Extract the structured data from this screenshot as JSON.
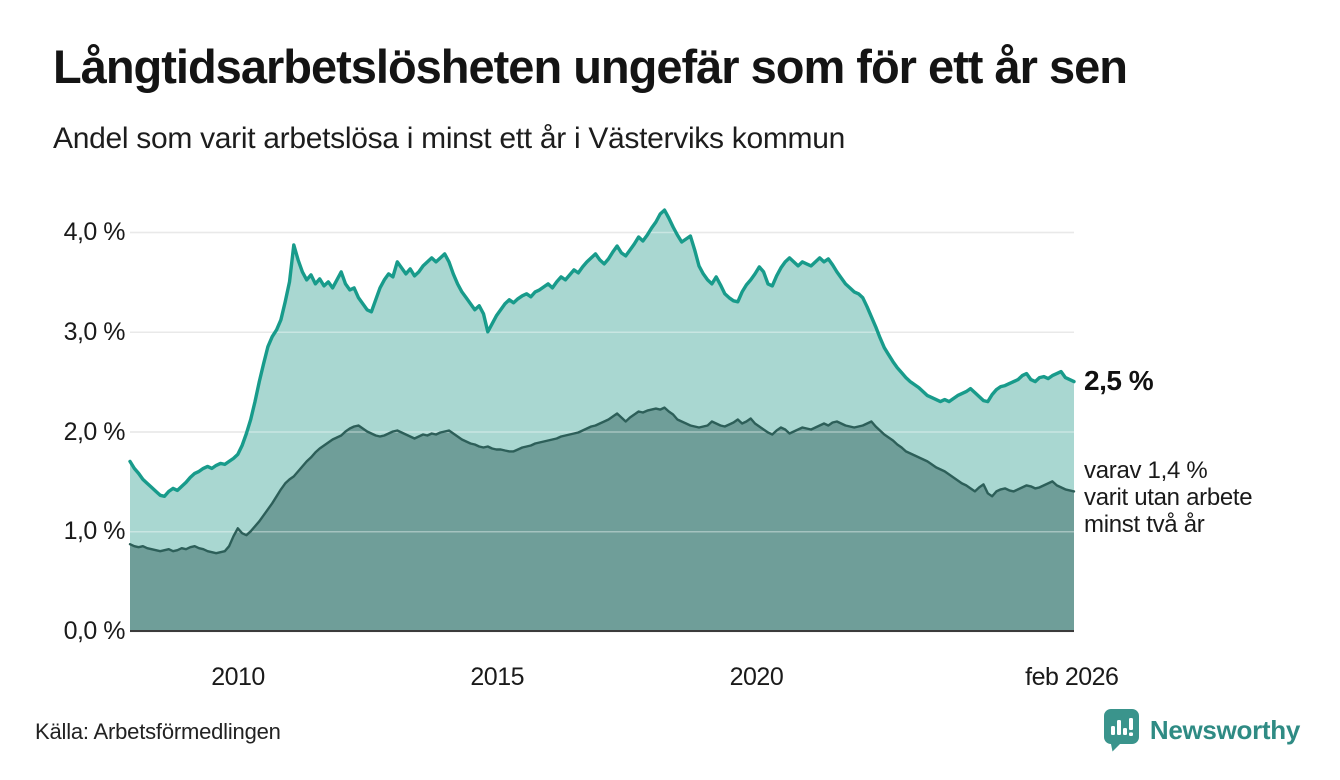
{
  "chart_data": {
    "type": "area",
    "title": "Långtidsarbetslösheten ungefär som för ett år sen",
    "subtitle": "Andel som varit arbetslösa i minst ett år i Västerviks kommun",
    "x_domain": [
      2007.9167,
      2026.125
    ],
    "x_start": "2007-11",
    "x_end": "2026-02",
    "x_step_months": 1,
    "x_axis_tick_years": [
      2010,
      2015,
      2020,
      2026.083
    ],
    "x_axis_tick_labels": [
      "2010",
      "2015",
      "2020",
      "feb 2026"
    ],
    "y_axis_ticks": [
      {
        "label": "0,0 %",
        "value": 0.0
      },
      {
        "label": "1,0 %",
        "value": 1.0
      },
      {
        "label": "2,0 %",
        "value": 2.0
      },
      {
        "label": "3,0 %",
        "value": 3.0
      },
      {
        "label": "4,0 %",
        "value": 4.0
      }
    ],
    "ylim": [
      0,
      4.35
    ],
    "grid": true,
    "legend_position": "none",
    "grid_color": "#dcdcdc",
    "baseline_color": "#3b3b3b",
    "series": [
      {
        "name": "Andel arbetslösa minst ett år",
        "line_color": "#189b8b",
        "fill_color": "#a9d7d1",
        "values": [
          1.7,
          1.63,
          1.58,
          1.52,
          1.48,
          1.44,
          1.4,
          1.36,
          1.35,
          1.4,
          1.43,
          1.41,
          1.45,
          1.49,
          1.54,
          1.58,
          1.6,
          1.63,
          1.65,
          1.63,
          1.66,
          1.68,
          1.67,
          1.7,
          1.73,
          1.77,
          1.86,
          1.98,
          2.12,
          2.3,
          2.5,
          2.68,
          2.85,
          2.95,
          3.02,
          3.12,
          3.3,
          3.5,
          3.87,
          3.72,
          3.6,
          3.52,
          3.57,
          3.48,
          3.53,
          3.46,
          3.5,
          3.44,
          3.52,
          3.6,
          3.48,
          3.42,
          3.44,
          3.34,
          3.28,
          3.22,
          3.2,
          3.32,
          3.44,
          3.52,
          3.58,
          3.55,
          3.7,
          3.64,
          3.58,
          3.63,
          3.56,
          3.6,
          3.66,
          3.7,
          3.74,
          3.7,
          3.74,
          3.78,
          3.7,
          3.58,
          3.48,
          3.4,
          3.34,
          3.28,
          3.22,
          3.26,
          3.18,
          3.0,
          3.08,
          3.16,
          3.22,
          3.28,
          3.32,
          3.29,
          3.33,
          3.36,
          3.38,
          3.35,
          3.4,
          3.42,
          3.45,
          3.48,
          3.44,
          3.5,
          3.55,
          3.52,
          3.57,
          3.62,
          3.59,
          3.65,
          3.7,
          3.74,
          3.78,
          3.72,
          3.68,
          3.73,
          3.8,
          3.86,
          3.79,
          3.76,
          3.82,
          3.88,
          3.95,
          3.91,
          3.97,
          4.04,
          4.1,
          4.18,
          4.22,
          4.14,
          4.05,
          3.97,
          3.9,
          3.93,
          3.96,
          3.82,
          3.66,
          3.58,
          3.52,
          3.48,
          3.55,
          3.47,
          3.38,
          3.34,
          3.31,
          3.3,
          3.4,
          3.47,
          3.52,
          3.58,
          3.65,
          3.6,
          3.48,
          3.46,
          3.56,
          3.64,
          3.7,
          3.74,
          3.7,
          3.66,
          3.7,
          3.68,
          3.66,
          3.7,
          3.74,
          3.7,
          3.73,
          3.67,
          3.6,
          3.54,
          3.48,
          3.44,
          3.4,
          3.38,
          3.34,
          3.25,
          3.15,
          3.05,
          2.94,
          2.84,
          2.77,
          2.7,
          2.64,
          2.59,
          2.54,
          2.5,
          2.47,
          2.44,
          2.4,
          2.36,
          2.34,
          2.32,
          2.3,
          2.32,
          2.3,
          2.33,
          2.36,
          2.38,
          2.4,
          2.43,
          2.39,
          2.35,
          2.31,
          2.3,
          2.37,
          2.42,
          2.45,
          2.46,
          2.48,
          2.5,
          2.52,
          2.56,
          2.58,
          2.52,
          2.5,
          2.54,
          2.55,
          2.53,
          2.56,
          2.58,
          2.6,
          2.54,
          2.52,
          2.5
        ]
      },
      {
        "name": "Andel arbetslösa minst två år",
        "line_color": "#2d5f59",
        "fill_color": "#6f9e99",
        "values": [
          0.87,
          0.85,
          0.84,
          0.85,
          0.83,
          0.82,
          0.81,
          0.8,
          0.81,
          0.82,
          0.8,
          0.81,
          0.83,
          0.82,
          0.84,
          0.85,
          0.83,
          0.82,
          0.8,
          0.79,
          0.78,
          0.79,
          0.8,
          0.85,
          0.95,
          1.03,
          0.98,
          0.96,
          1.0,
          1.05,
          1.1,
          1.16,
          1.22,
          1.28,
          1.35,
          1.42,
          1.48,
          1.52,
          1.55,
          1.6,
          1.65,
          1.7,
          1.74,
          1.79,
          1.83,
          1.86,
          1.89,
          1.92,
          1.94,
          1.96,
          2.0,
          2.03,
          2.05,
          2.06,
          2.03,
          2.0,
          1.98,
          1.96,
          1.95,
          1.96,
          1.98,
          2.0,
          2.01,
          1.99,
          1.97,
          1.95,
          1.93,
          1.95,
          1.97,
          1.96,
          1.98,
          1.97,
          1.99,
          2.0,
          2.01,
          1.98,
          1.95,
          1.92,
          1.9,
          1.88,
          1.87,
          1.85,
          1.84,
          1.85,
          1.83,
          1.82,
          1.82,
          1.81,
          1.8,
          1.8,
          1.82,
          1.84,
          1.85,
          1.86,
          1.88,
          1.89,
          1.9,
          1.91,
          1.92,
          1.93,
          1.95,
          1.96,
          1.97,
          1.98,
          1.99,
          2.01,
          2.03,
          2.05,
          2.06,
          2.08,
          2.1,
          2.12,
          2.15,
          2.18,
          2.14,
          2.1,
          2.14,
          2.17,
          2.2,
          2.19,
          2.21,
          2.22,
          2.23,
          2.22,
          2.24,
          2.2,
          2.17,
          2.12,
          2.1,
          2.08,
          2.06,
          2.05,
          2.04,
          2.05,
          2.06,
          2.1,
          2.08,
          2.06,
          2.05,
          2.07,
          2.09,
          2.12,
          2.08,
          2.1,
          2.13,
          2.08,
          2.05,
          2.02,
          1.99,
          1.97,
          2.01,
          2.04,
          2.02,
          1.98,
          2.0,
          2.02,
          2.04,
          2.03,
          2.02,
          2.04,
          2.06,
          2.08,
          2.06,
          2.09,
          2.1,
          2.08,
          2.06,
          2.05,
          2.04,
          2.05,
          2.06,
          2.08,
          2.1,
          2.05,
          2.01,
          1.97,
          1.94,
          1.91,
          1.87,
          1.84,
          1.8,
          1.78,
          1.76,
          1.74,
          1.72,
          1.7,
          1.67,
          1.64,
          1.62,
          1.6,
          1.57,
          1.54,
          1.51,
          1.48,
          1.46,
          1.43,
          1.4,
          1.44,
          1.47,
          1.38,
          1.35,
          1.4,
          1.42,
          1.43,
          1.41,
          1.4,
          1.42,
          1.44,
          1.46,
          1.45,
          1.43,
          1.44,
          1.46,
          1.48,
          1.5,
          1.46,
          1.44,
          1.42,
          1.41,
          1.4
        ]
      }
    ],
    "annotations": {
      "latest_total_label": "2,5 %",
      "latest_total_value": 2.5,
      "subset_label_lines": [
        "varav 1,4 %",
        "varit utan arbete",
        "minst två år"
      ],
      "latest_subset_value": 1.4
    }
  },
  "footer": {
    "source": "Källa: Arbetsförmedlingen",
    "brand": "Newsworthy",
    "brand_color": "#2f8b84",
    "logo_icon": "bar-chart-speech-bubble"
  }
}
